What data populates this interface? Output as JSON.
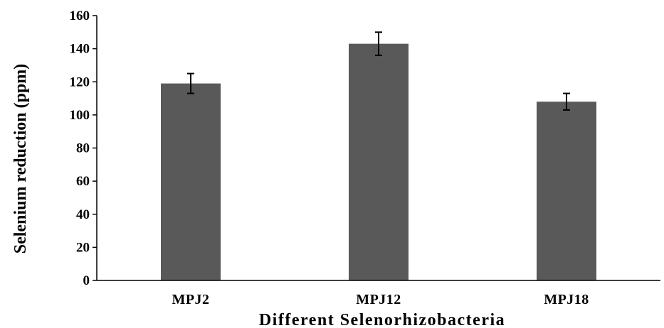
{
  "chart_data": {
    "type": "bar",
    "title": "",
    "categories": [
      "MPJ2",
      "MPJ12",
      "MPJ18"
    ],
    "series": [
      {
        "values": [
          119,
          143,
          108
        ],
        "error": [
          6,
          7,
          5
        ],
        "color": "#595959"
      }
    ],
    "xlabel": "Different Selenorhizobacteria",
    "ylabel": "Selenium reduction (ppm)",
    "ylim": [
      0,
      160
    ],
    "yticks": [
      0,
      20,
      40,
      60,
      80,
      100,
      120,
      140,
      160
    ],
    "grid": false,
    "legend": "none"
  }
}
